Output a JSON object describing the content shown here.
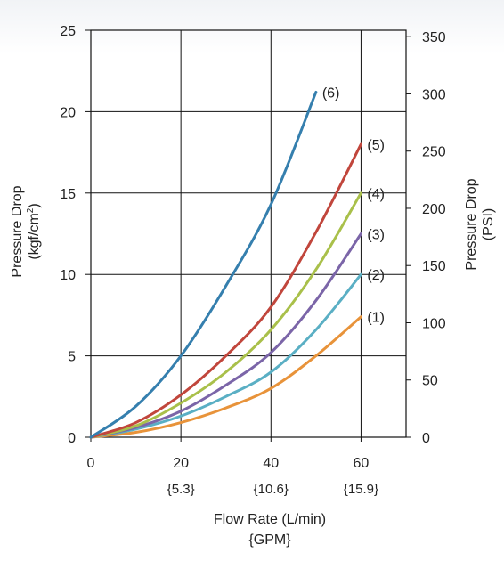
{
  "chart_data": {
    "type": "line",
    "xlabel": "Flow Rate (L/min)",
    "xlabel_secondary": "{GPM}",
    "ylabel": "Pressure Drop",
    "ylabel_unit": "(kgf/cm",
    "ylabel_unit_sup": "2",
    "ylabel_unit_end": ")",
    "y2label": "Pressure Drop",
    "y2label_unit": "(PSI)",
    "xlim": [
      0,
      70
    ],
    "ylim": [
      0,
      25
    ],
    "y2lim": [
      0,
      355.6
    ],
    "x_ticks": [
      "0",
      "20",
      "40",
      "60"
    ],
    "x_tick_values": [
      0,
      20,
      40,
      60
    ],
    "x_secondary_ticks": [
      "{5.3}",
      "{10.6}",
      "{15.9}"
    ],
    "x_secondary_tick_values": [
      20,
      40,
      60
    ],
    "y_ticks": [
      "0",
      "5",
      "10",
      "15",
      "20",
      "25"
    ],
    "y_tick_values": [
      0,
      5,
      10,
      15,
      20,
      25
    ],
    "y2_ticks": [
      "0",
      "50",
      "100",
      "150",
      "200",
      "250",
      "300",
      "350"
    ],
    "y2_tick_values": [
      0,
      50,
      100,
      150,
      200,
      250,
      300,
      350
    ],
    "grid": true,
    "legend": "labels at line ends",
    "series": [
      {
        "label": "(1)",
        "color": "#e8933a",
        "x": [
          0,
          10,
          20,
          30,
          40,
          50,
          60
        ],
        "y": [
          0,
          0.3,
          0.9,
          1.8,
          3.0,
          5.0,
          7.4
        ]
      },
      {
        "label": "(2)",
        "color": "#5aafc4",
        "x": [
          0,
          10,
          20,
          30,
          40,
          50,
          60
        ],
        "y": [
          0,
          0.5,
          1.3,
          2.5,
          4.0,
          6.6,
          10.0
        ]
      },
      {
        "label": "(3)",
        "color": "#7b65a8",
        "x": [
          0,
          10,
          20,
          30,
          40,
          50,
          60
        ],
        "y": [
          0,
          0.6,
          1.6,
          3.2,
          5.2,
          8.4,
          12.5
        ]
      },
      {
        "label": "(4)",
        "color": "#a9c04a",
        "x": [
          0,
          10,
          20,
          30,
          40,
          50,
          60
        ],
        "y": [
          0,
          0.7,
          2.1,
          4.0,
          6.6,
          10.3,
          15.0
        ]
      },
      {
        "label": "(5)",
        "color": "#c1463c",
        "x": [
          0,
          10,
          20,
          30,
          40,
          50,
          60
        ],
        "y": [
          0,
          0.9,
          2.6,
          5.0,
          8.0,
          12.6,
          18.0
        ]
      },
      {
        "label": "(6)",
        "color": "#357fae",
        "x": [
          0,
          10,
          20,
          30,
          40,
          50
        ],
        "y": [
          0,
          1.9,
          5.0,
          9.3,
          14.3,
          21.2
        ]
      }
    ]
  }
}
